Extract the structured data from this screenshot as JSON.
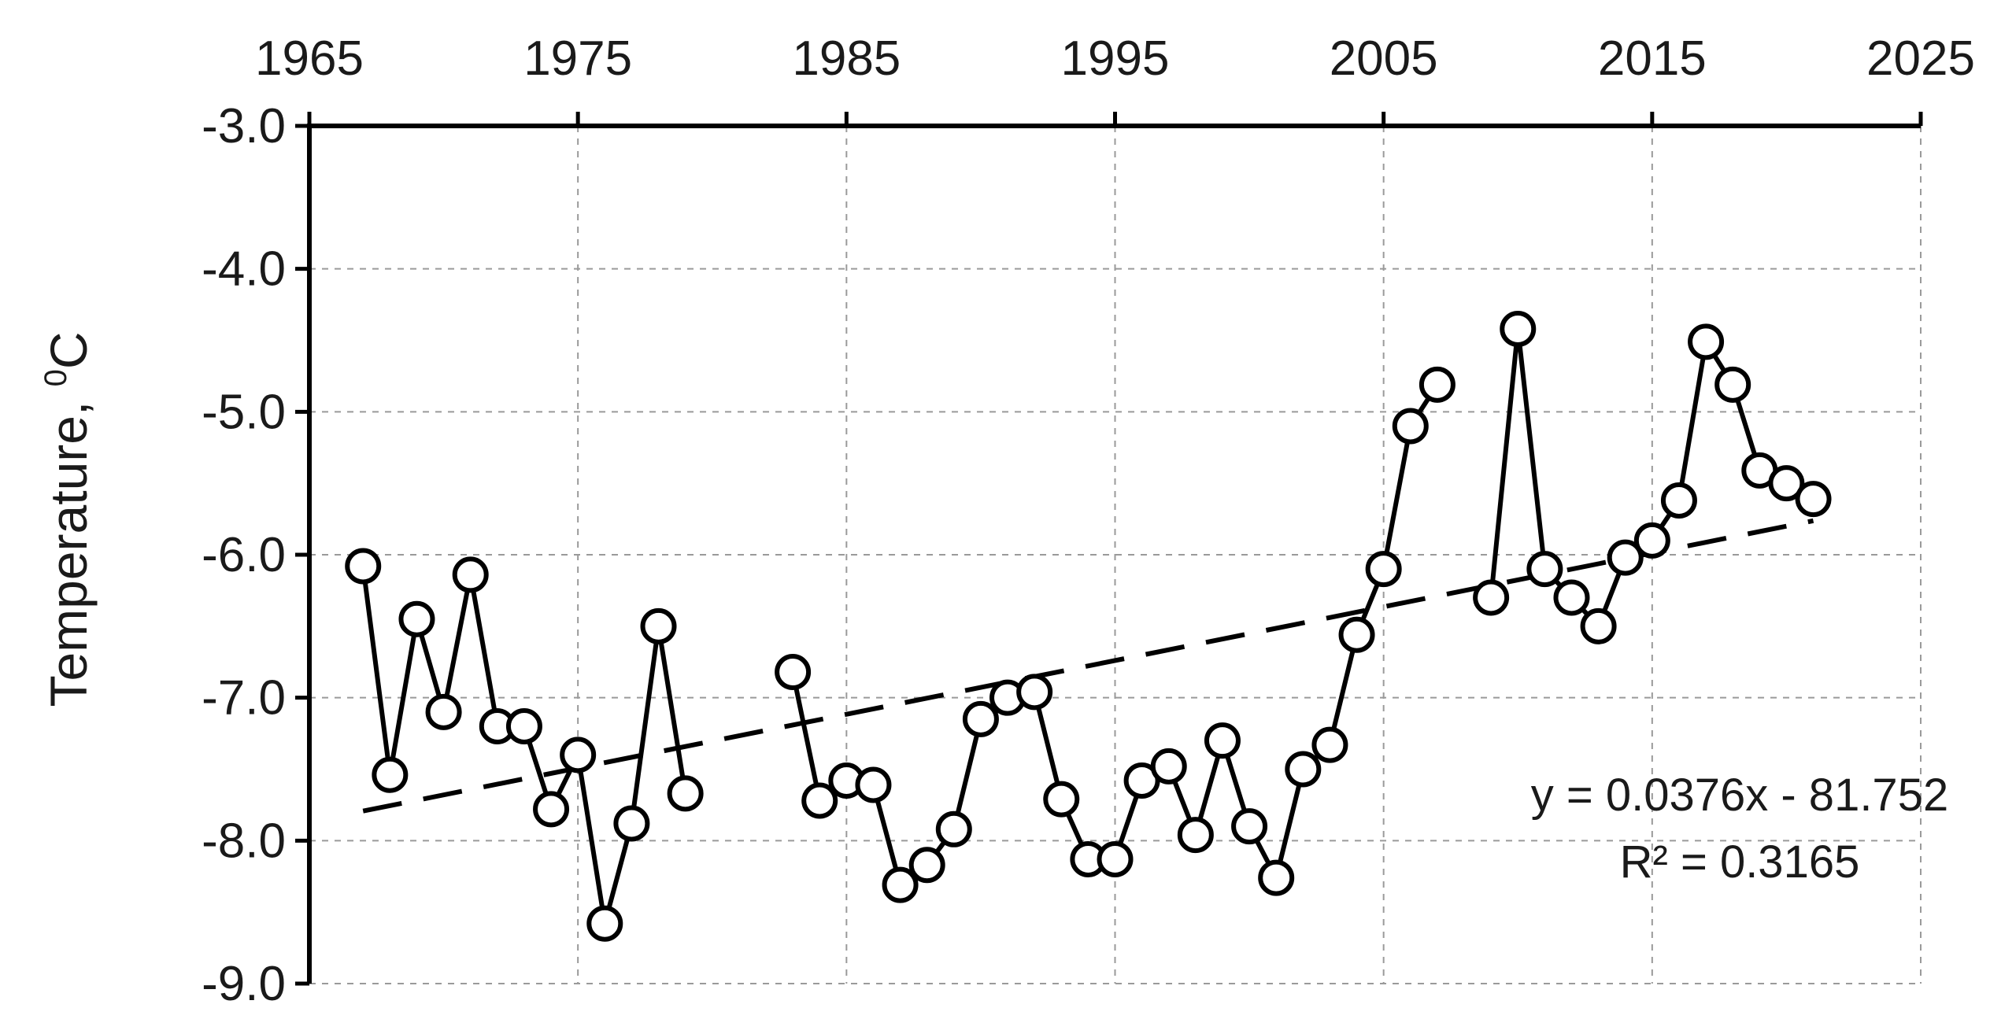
{
  "chart_data": {
    "type": "line",
    "title": "",
    "xlabel": "",
    "ylabel": "Temperature, ",
    "ylabel_superscript": "0",
    "ylabel_unit": "C",
    "xlim": [
      1965,
      2025
    ],
    "ylim": [
      -9.0,
      -3.0
    ],
    "x_ticks": [
      1965,
      1975,
      1985,
      1995,
      2005,
      2015,
      2025
    ],
    "x_tick_labels": [
      "1965",
      "1975",
      "1985",
      "1995",
      "2005",
      "2015",
      "2025"
    ],
    "y_ticks": [
      -3.0,
      -4.0,
      -5.0,
      -6.0,
      -7.0,
      -8.0,
      -9.0
    ],
    "y_tick_labels": [
      "-3.0",
      "-4.0",
      "-5.0",
      "-6.0",
      "-7.0",
      "-8.0",
      "-9.0"
    ],
    "x_axis_position": "top",
    "grid": true,
    "series": [
      {
        "segments": [
          {
            "x": [
              1967,
              1968,
              1969,
              1970,
              1971,
              1972,
              1973,
              1974,
              1975,
              1976,
              1977,
              1978,
              1979
            ],
            "y": [
              -6.08,
              -7.54,
              -6.45,
              -7.1,
              -6.14,
              -7.2,
              -7.2,
              -7.78,
              -7.4,
              -8.58,
              -7.88,
              -6.5,
              -7.67
            ]
          },
          {
            "x": [
              1983,
              1984,
              1985,
              1986,
              1987,
              1988,
              1989,
              1990,
              1991,
              1992,
              1993,
              1994,
              1995,
              1996,
              1997,
              1998,
              1999,
              2000,
              2001,
              2002,
              2003,
              2004,
              2005,
              2006,
              2007
            ],
            "y": [
              -6.82,
              -7.72,
              -7.58,
              -7.61,
              -8.31,
              -8.17,
              -7.92,
              -7.15,
              -7.0,
              -6.96,
              -7.71,
              -8.13,
              -8.13,
              -7.58,
              -7.48,
              -7.96,
              -7.3,
              -7.9,
              -8.26,
              -7.5,
              -7.33,
              -6.56,
              -6.1,
              -5.1,
              -4.81
            ]
          },
          {
            "x": [
              2009,
              2010,
              2011,
              2012,
              2013,
              2014,
              2015,
              2016,
              2017,
              2018,
              2019,
              2020,
              2021
            ],
            "y": [
              -6.3,
              -4.42,
              -6.1,
              -6.3,
              -6.5,
              -6.02,
              -5.9,
              -5.62,
              -4.51,
              -4.81,
              -5.41,
              -5.5,
              -5.61
            ]
          }
        ]
      }
    ],
    "trendline": {
      "slope": 0.0376,
      "intercept": -81.752,
      "x_range": [
        1967,
        2021
      ],
      "style": "dashed"
    },
    "annotations": [
      "y = 0.0376x - 81.752",
      "R² = 0.3165"
    ]
  }
}
